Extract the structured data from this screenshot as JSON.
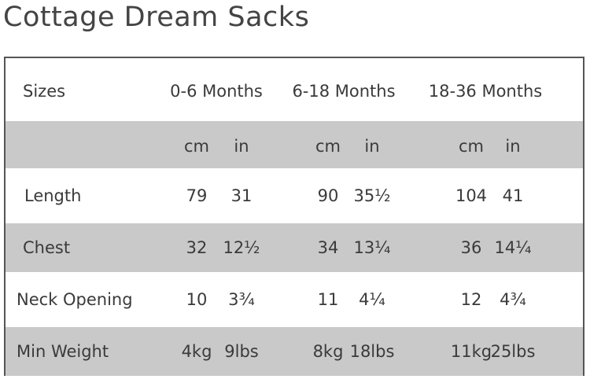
{
  "title": "Cottage Dream Sacks",
  "table": {
    "headers": [
      "Sizes",
      "0-6 Months",
      "6-18 Months",
      "18-36 Months"
    ],
    "units": [
      "cm",
      "in",
      "cm",
      "in",
      "cm",
      "in"
    ],
    "rows": [
      {
        "label": "Length",
        "values": [
          "79",
          "31",
          "90",
          "35½",
          "104",
          "41"
        ]
      },
      {
        "label": "Chest",
        "values": [
          "32",
          "12½",
          "34",
          "13¼",
          "36",
          "14¼"
        ]
      },
      {
        "label": "Neck Opening",
        "values": [
          "10",
          "3¾",
          "11",
          "4¼",
          "12",
          "4¾"
        ]
      },
      {
        "label": "Min Weight",
        "values": [
          "4kg",
          "9lbs",
          "8kg",
          "18lbs",
          "11kg",
          "25lbs"
        ]
      }
    ]
  }
}
